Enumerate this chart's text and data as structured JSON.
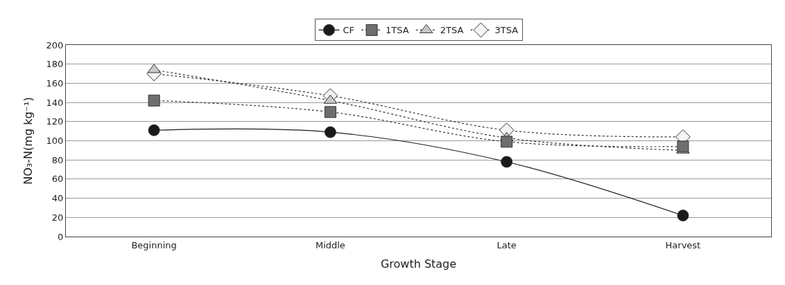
{
  "chart_data": {
    "type": "line",
    "xlabel": "Growth Stage",
    "ylabel": "NO₃-N(mg kg⁻¹)",
    "categories": [
      "Beginning",
      "Middle",
      "Late",
      "Harvest"
    ],
    "series": [
      {
        "name": "CF",
        "color": "#1a1a1a",
        "values": [
          111,
          109,
          78,
          22
        ],
        "marker": "circle",
        "line_style": "solid"
      },
      {
        "name": "1TSA",
        "color": "#6e6e6e",
        "values": [
          142,
          130,
          99,
          94
        ],
        "marker": "square",
        "line_style": "dotted"
      },
      {
        "name": "2TSA",
        "color": "#c8c8c8",
        "values": [
          174,
          142,
          103,
          90
        ],
        "marker": "triangle",
        "line_style": "dotted"
      },
      {
        "name": "3TSA",
        "color": "#f4f4f4",
        "values": [
          170,
          147,
          111,
          104
        ],
        "marker": "diamond",
        "line_style": "dotted"
      }
    ],
    "ylim": [
      0,
      200
    ],
    "yticks": [
      0,
      20,
      40,
      60,
      80,
      100,
      120,
      140,
      160,
      180,
      200
    ],
    "grid": "y",
    "legend": "top"
  }
}
